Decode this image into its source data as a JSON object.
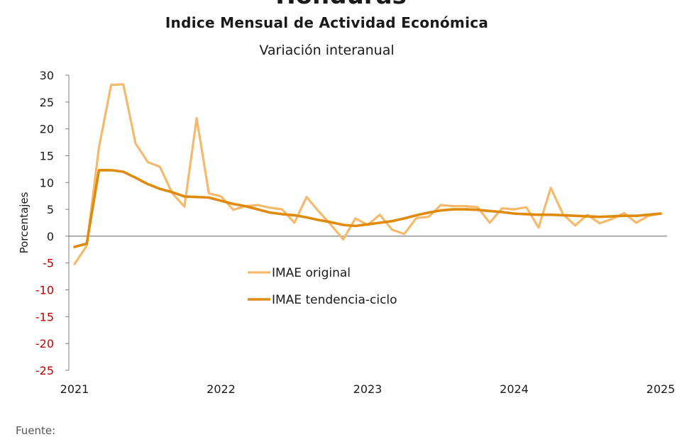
{
  "header": {
    "top_title": "Honduras",
    "chart_title": "Indice Mensual de  Actividad Económica",
    "chart_subtitle": "Variación interanual"
  },
  "footer": {
    "source_label": "Fuente:"
  },
  "colors": {
    "original": "#f5b96b",
    "trend": "#e08a0c",
    "axis": "#7f7f7f",
    "negative_tick": "#c00000",
    "positive_tick": "#1a1a1a"
  },
  "chart_data": {
    "type": "line",
    "title": "Indice Mensual de  Actividad Económica",
    "subtitle": "Variación interanual",
    "ylabel": "Porcentajes",
    "xlabel": "",
    "ylim": [
      -25,
      30
    ],
    "yticks": [
      30,
      25,
      20,
      15,
      10,
      5,
      0,
      -5,
      -10,
      -15,
      -20,
      -25
    ],
    "xticks": [
      "2021",
      "2022",
      "2023",
      "2024",
      "2025"
    ],
    "negative_tick_color": "#c00000",
    "legend_position": "center-left",
    "grid": false,
    "series": [
      {
        "name": "IMAE original",
        "color": "#f5b96b",
        "values": [
          {
            "x": "2021-01",
            "y": -5.2
          },
          {
            "x": "2021-02",
            "y": -1.8
          },
          {
            "x": "2021-03",
            "y": 16.5
          },
          {
            "x": "2021-04",
            "y": 28.2
          },
          {
            "x": "2021-05",
            "y": 28.3
          },
          {
            "x": "2021-06",
            "y": 17.3
          },
          {
            "x": "2021-07",
            "y": 13.8
          },
          {
            "x": "2021-08",
            "y": 12.9
          },
          {
            "x": "2021-09",
            "y": 8.0
          },
          {
            "x": "2021-10",
            "y": 5.5
          },
          {
            "x": "2021-11",
            "y": 22.0
          },
          {
            "x": "2021-12",
            "y": 8.0
          },
          {
            "x": "2022-01",
            "y": 7.4
          },
          {
            "x": "2022-02",
            "y": 4.9
          },
          {
            "x": "2022-03",
            "y": 5.6
          },
          {
            "x": "2022-04",
            "y": 5.8
          },
          {
            "x": "2022-05",
            "y": 5.3
          },
          {
            "x": "2022-06",
            "y": 5.0
          },
          {
            "x": "2022-07",
            "y": 2.5
          },
          {
            "x": "2022-08",
            "y": 7.3
          },
          {
            "x": "2022-09",
            "y": 4.6
          },
          {
            "x": "2022-10",
            "y": 2.1
          },
          {
            "x": "2022-11",
            "y": -0.6
          },
          {
            "x": "2022-12",
            "y": 3.3
          },
          {
            "x": "2023-01",
            "y": 2.1
          },
          {
            "x": "2023-02",
            "y": 4.0
          },
          {
            "x": "2023-03",
            "y": 1.2
          },
          {
            "x": "2023-04",
            "y": 0.4
          },
          {
            "x": "2023-05",
            "y": 3.4
          },
          {
            "x": "2023-06",
            "y": 3.6
          },
          {
            "x": "2023-07",
            "y": 5.8
          },
          {
            "x": "2023-08",
            "y": 5.6
          },
          {
            "x": "2023-09",
            "y": 5.6
          },
          {
            "x": "2023-10",
            "y": 5.4
          },
          {
            "x": "2023-11",
            "y": 2.5
          },
          {
            "x": "2023-12",
            "y": 5.2
          },
          {
            "x": "2024-01",
            "y": 5.0
          },
          {
            "x": "2024-02",
            "y": 5.4
          },
          {
            "x": "2024-03",
            "y": 1.6
          },
          {
            "x": "2024-04",
            "y": 9.0
          },
          {
            "x": "2024-05",
            "y": 4.1
          },
          {
            "x": "2024-06",
            "y": 2.0
          },
          {
            "x": "2024-07",
            "y": 4.0
          },
          {
            "x": "2024-08",
            "y": 2.4
          },
          {
            "x": "2024-09",
            "y": 3.2
          },
          {
            "x": "2024-10",
            "y": 4.3
          },
          {
            "x": "2024-11",
            "y": 2.5
          },
          {
            "x": "2024-12",
            "y": 3.8
          },
          {
            "x": "2025-01",
            "y": 4.2
          }
        ]
      },
      {
        "name": "IMAE tendencia-ciclo",
        "color": "#e08a0c",
        "values": [
          {
            "x": "2021-01",
            "y": -2.0
          },
          {
            "x": "2021-02",
            "y": -1.4
          },
          {
            "x": "2021-03",
            "y": 12.3
          },
          {
            "x": "2021-04",
            "y": 12.3
          },
          {
            "x": "2021-05",
            "y": 12.0
          },
          {
            "x": "2021-06",
            "y": 10.9
          },
          {
            "x": "2021-07",
            "y": 9.7
          },
          {
            "x": "2021-08",
            "y": 8.8
          },
          {
            "x": "2021-09",
            "y": 8.2
          },
          {
            "x": "2021-10",
            "y": 7.4
          },
          {
            "x": "2021-11",
            "y": 7.3
          },
          {
            "x": "2021-12",
            "y": 7.2
          },
          {
            "x": "2022-01",
            "y": 6.6
          },
          {
            "x": "2022-02",
            "y": 6.0
          },
          {
            "x": "2022-03",
            "y": 5.6
          },
          {
            "x": "2022-04",
            "y": 5.0
          },
          {
            "x": "2022-05",
            "y": 4.4
          },
          {
            "x": "2022-06",
            "y": 4.1
          },
          {
            "x": "2022-07",
            "y": 3.9
          },
          {
            "x": "2022-08",
            "y": 3.5
          },
          {
            "x": "2022-09",
            "y": 3.0
          },
          {
            "x": "2022-10",
            "y": 2.6
          },
          {
            "x": "2022-11",
            "y": 2.1
          },
          {
            "x": "2022-12",
            "y": 1.9
          },
          {
            "x": "2023-01",
            "y": 2.2
          },
          {
            "x": "2023-02",
            "y": 2.5
          },
          {
            "x": "2023-03",
            "y": 2.8
          },
          {
            "x": "2023-04",
            "y": 3.3
          },
          {
            "x": "2023-05",
            "y": 3.9
          },
          {
            "x": "2023-06",
            "y": 4.4
          },
          {
            "x": "2023-07",
            "y": 4.8
          },
          {
            "x": "2023-08",
            "y": 5.0
          },
          {
            "x": "2023-09",
            "y": 5.0
          },
          {
            "x": "2023-10",
            "y": 4.9
          },
          {
            "x": "2023-11",
            "y": 4.7
          },
          {
            "x": "2023-12",
            "y": 4.5
          },
          {
            "x": "2024-01",
            "y": 4.2
          },
          {
            "x": "2024-02",
            "y": 4.1
          },
          {
            "x": "2024-03",
            "y": 4.0
          },
          {
            "x": "2024-04",
            "y": 4.0
          },
          {
            "x": "2024-05",
            "y": 3.9
          },
          {
            "x": "2024-06",
            "y": 3.8
          },
          {
            "x": "2024-07",
            "y": 3.7
          },
          {
            "x": "2024-08",
            "y": 3.6
          },
          {
            "x": "2024-09",
            "y": 3.7
          },
          {
            "x": "2024-10",
            "y": 3.8
          },
          {
            "x": "2024-11",
            "y": 3.8
          },
          {
            "x": "2024-12",
            "y": 4.0
          },
          {
            "x": "2025-01",
            "y": 4.2
          }
        ]
      }
    ]
  }
}
